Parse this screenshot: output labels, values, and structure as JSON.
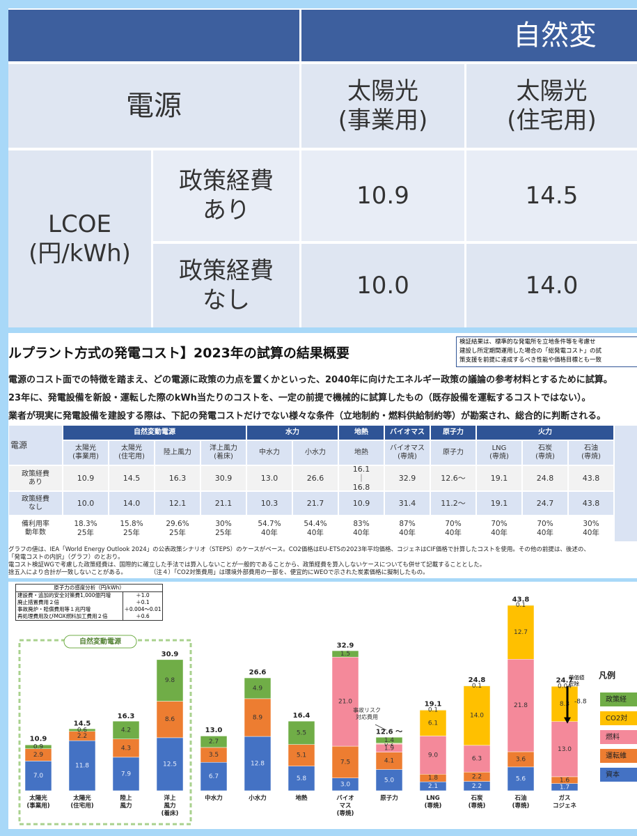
{
  "zoom_table": {
    "header_text": "自然変",
    "column_header": "電源",
    "columns": [
      "太陽光\n(事業用)",
      "太陽光\n(住宅用)"
    ],
    "row_group": "LCOE\n(円/kWh)",
    "rows": [
      {
        "label": "政策経費\nあり",
        "values": [
          "10.9",
          "14.5"
        ]
      },
      {
        "label": "政策経費\nなし",
        "values": [
          "10.0",
          "14.0"
        ]
      }
    ]
  },
  "header": {
    "title": "ルプラント方式の発電コスト】2023年の試算の結果概要",
    "box_lines": [
      "検証結果は、標準的な発電所を立地条件等を考慮せ",
      "建設し所定期間運用した場合の「総発電コスト」の試",
      "策支援を前提に達成するべき性能や価格目標とも一致"
    ],
    "bullets": [
      "電源のコスト面での特徴を踏まえ、どの電源に政策の力点を置くかといった、2040年に向けたエネルギー政策の議論の参考材料とするために試算。",
      "23年に、発電設備を新設・運転した際のkWh当たりのコストを、一定の前提で機械的に試算したもの（既存設備を運転するコストではない）。",
      "業者が現実に発電設備を建設する際は、下記の発電コストだけでない様々な条件（立地制約・燃料供給制約等）が勘案され、総合的に判断される。"
    ]
  },
  "table": {
    "corner": "電源",
    "groups": [
      {
        "label": "自然変動電源",
        "columns": [
          "太陽光\n(事業用)",
          "太陽光\n(住宅用)",
          "陸上風力",
          "洋上風力\n(着床)"
        ]
      },
      {
        "label": "水力",
        "columns": [
          "中水力",
          "小水力"
        ]
      },
      {
        "label": "地熱",
        "columns": [
          "地熱"
        ]
      },
      {
        "label": "バイオマス",
        "columns": [
          "バイオマス\n(専焼)"
        ]
      },
      {
        "label": "原子力",
        "columns": [
          "原子力"
        ]
      },
      {
        "label": "火力",
        "columns": [
          "LNG\n(専焼)",
          "石炭\n(専焼)",
          "石油\n(専焼)"
        ]
      }
    ],
    "rows": [
      {
        "label": "政策経費\nあり",
        "cells": [
          "10.9",
          "14.5",
          "16.3",
          "30.9",
          "13.0",
          "26.6",
          "16.1\n｜\n16.8",
          "32.9",
          "12.6～",
          "19.1",
          "24.8",
          "43.8"
        ]
      },
      {
        "label": "政策経費\nなし",
        "cells": [
          "10.0",
          "14.0",
          "12.1",
          "21.1",
          "10.3",
          "21.7",
          "10.9",
          "31.4",
          "11.2～",
          "19.1",
          "24.7",
          "43.8"
        ]
      },
      {
        "label": "備利用率\n動年数",
        "cells": [
          "18.3%\n25年",
          "15.8%\n25年",
          "29.6%\n25年",
          "30%\n25年",
          "54.7%\n40年",
          "54.4%\n40年",
          "83%\n40年",
          "87%\n40年",
          "70%\n40年",
          "70%\n40年",
          "70%\n40年",
          "30%\n40年"
        ]
      }
    ]
  },
  "notes": [
    "グラフの値は、IEA「World Energy Outlook 2024」の公表政策シナリオ（STEPS）のケースがベース。CO2価格はEU-ETSの2023年平均価格、コジェネはCIF価格で計算したコストを使用。その他の前提は、後述の、",
    "「発電コストの内訳」（グラフ）のとおり。",
    "電コスト検証WGで考慮した政策経費は、国際的に確立した手法では算入しないことが一般的であることから、政策経費を算入しないケースについても併せて記載することとした。",
    "捨五入により合計が一致しないことがある。　　　　　（注４）「CO2対策費用」は環境外部費用の一部を、便宜的にWEOで示された炭素価格に擬制したもの。"
  ],
  "sensitivity": {
    "title": "原子力の感度分析（円/kWh）",
    "rows": [
      [
        "建設費・追加的安全対策費1,000億円増",
        "＋1.0"
      ],
      [
        "廃止措置費用２倍",
        "＋0.1"
      ],
      [
        "事故廃炉・賠償費用等１兆円増",
        "＋0.004〜0.01"
      ],
      [
        "再処理費用及びMOX燃料加工費用２倍",
        "＋0.6"
      ]
    ]
  },
  "chart_data": {
    "type": "bar",
    "stacked": true,
    "group_label": "自然変動電源",
    "legend_title": "凡例",
    "categories": [
      "太陽光\n(事業用)",
      "太陽光\n(住宅用)",
      "陸上\n風力",
      "洋上\n風力\n(着床)",
      "中水力",
      "小水力",
      "地熱",
      "バイオ\nマス\n(専焼)",
      "原子力",
      "LNG\n(専焼)",
      "石炭\n(専焼)",
      "石油\n(専焼)",
      "ガス\nコジェネ"
    ],
    "ylim": [
      0,
      45
    ],
    "series": [
      {
        "name": "資本",
        "color": "#4472c4",
        "values": [
          7.0,
          11.8,
          7.9,
          12.5,
          6.7,
          12.8,
          5.8,
          3.0,
          5.0,
          2.1,
          2.2,
          5.6,
          1.7
        ],
        "value_labels": [
          "7.0",
          "11.8",
          "7.9",
          "12.5",
          "6.7",
          "12.8",
          "5.8",
          "3.0",
          "5.0",
          "2.1",
          "2.2",
          "5.6",
          "1.7"
        ]
      },
      {
        "name": "運転維",
        "color": "#ed7d31",
        "values": [
          2.9,
          2.2,
          4.3,
          8.6,
          3.5,
          8.9,
          5.1,
          7.5,
          4.1,
          1.8,
          2.2,
          3.6,
          1.6
        ]
      },
      {
        "name": "燃料",
        "color": "#f4899a",
        "values": [
          null,
          null,
          null,
          null,
          null,
          null,
          null,
          21.0,
          1.9,
          9.0,
          6.3,
          21.8,
          13.0
        ],
        "value_labels": [
          null,
          null,
          null,
          null,
          null,
          null,
          null,
          "21.0",
          "1.9",
          "9.0",
          "6.3",
          "21.8",
          "13.0"
        ]
      },
      {
        "name": "CO2対",
        "color": "#ffc000",
        "values": [
          null,
          null,
          null,
          null,
          null,
          null,
          null,
          null,
          null,
          6.1,
          14.0,
          12.7,
          8.3
        ],
        "value_labels": [
          null,
          null,
          null,
          null,
          null,
          null,
          null,
          null,
          null,
          "6.1",
          "14.0",
          "12.7",
          "8.3"
        ]
      },
      {
        "name": "政策経",
        "color": "#70ad47",
        "values": [
          0.9,
          0.6,
          4.2,
          9.8,
          2.7,
          4.9,
          5.5,
          1.5,
          1.4,
          0.1,
          0.1,
          0.1,
          0.04
        ]
      }
    ],
    "accident_risk": {
      "label": "事故リスク\n対応費用",
      "color": "#f8cbad",
      "values": [
        null,
        null,
        null,
        null,
        null,
        null,
        null,
        null,
        0.2,
        null,
        null,
        null,
        null
      ]
    },
    "totals": {
      "values": [
        10.9,
        14.5,
        16.3,
        30.9,
        13.0,
        26.6,
        16.4,
        32.9,
        12.6,
        19.1,
        24.8,
        43.8,
        24.7
      ],
      "value_labels": [
        "10.9",
        "14.5",
        "16.3",
        "30.9",
        "13.0",
        "26.6",
        "16.4",
        "32.9",
        "12.6 ～",
        "19.1",
        "24.8",
        "43.8",
        "24.7"
      ]
    },
    "heat_deduction": {
      "label": "熱価値\n控除",
      "value": -8.8
    }
  }
}
